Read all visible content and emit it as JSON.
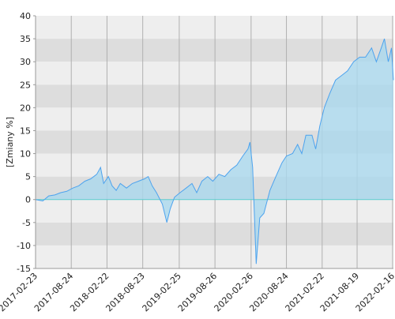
{
  "chart_data": {
    "type": "area",
    "y_label": "[Zmiany %]",
    "x": [
      "2017-02-23",
      "2017-04-01",
      "2017-05-01",
      "2017-06-01",
      "2017-07-01",
      "2017-08-01",
      "2017-09-01",
      "2017-10-01",
      "2017-11-01",
      "2017-12-01",
      "2018-01-01",
      "2018-01-20",
      "2018-02-05",
      "2018-03-01",
      "2018-03-20",
      "2018-04-10",
      "2018-05-01",
      "2018-06-01",
      "2018-07-01",
      "2018-08-01",
      "2018-09-01",
      "2018-09-20",
      "2018-10-10",
      "2018-11-01",
      "2018-12-01",
      "2018-12-24",
      "2019-01-10",
      "2019-02-01",
      "2019-03-01",
      "2019-04-01",
      "2019-05-01",
      "2019-05-25",
      "2019-06-20",
      "2019-07-20",
      "2019-08-15",
      "2019-09-15",
      "2019-10-15",
      "2019-11-15",
      "2019-12-15",
      "2020-01-15",
      "2020-02-10",
      "2020-02-20",
      "2020-03-05",
      "2020-03-23",
      "2020-04-10",
      "2020-05-01",
      "2020-06-01",
      "2020-07-01",
      "2020-08-01",
      "2020-08-24",
      "2020-09-24",
      "2020-10-20",
      "2020-11-10",
      "2020-12-01",
      "2021-01-01",
      "2021-01-20",
      "2021-02-10",
      "2021-03-05",
      "2021-04-01",
      "2021-05-01",
      "2021-06-01",
      "2021-07-01",
      "2021-08-01",
      "2021-09-01",
      "2021-10-01",
      "2021-11-01",
      "2021-11-25",
      "2021-12-20",
      "2022-01-05",
      "2022-01-25",
      "2022-02-10",
      "2022-02-20"
    ],
    "values": [
      0,
      -0.3,
      0.8,
      1.0,
      1.5,
      1.8,
      2.5,
      3.0,
      4.0,
      4.5,
      5.5,
      7.0,
      3.5,
      5.0,
      3.0,
      2.0,
      3.5,
      2.5,
      3.5,
      4.0,
      4.5,
      5.0,
      3.0,
      1.5,
      -1.0,
      -5.0,
      -2.0,
      0.5,
      1.5,
      2.5,
      3.5,
      1.5,
      4.0,
      5.0,
      4.0,
      5.5,
      5.0,
      6.5,
      7.5,
      9.5,
      11.0,
      12.5,
      7,
      -14,
      -4,
      -3,
      2,
      5,
      8,
      9.5,
      10,
      12,
      10,
      14,
      14,
      11,
      16,
      20,
      23,
      26,
      27,
      28,
      30,
      31,
      31,
      33,
      30,
      33,
      35,
      30,
      33,
      26
    ],
    "color": "#4da3ee",
    "fill_color": "#aad8ee",
    "zero_line_color": "#5ccccc",
    "band_colors": [
      "#eeeeee",
      "#dddddd"
    ],
    "xlim": [
      "2017-02-23",
      "2022-02-20"
    ],
    "xticks": [
      "2017-02-23",
      "2017-08-24",
      "2018-02-22",
      "2018-08-23",
      "2019-02-25",
      "2019-08-26",
      "2020-02-26",
      "2020-08-24",
      "2021-02-22",
      "2021-08-19",
      "2022-02-16"
    ],
    "ylim": [
      -15,
      40
    ],
    "yticks": [
      -15,
      -10,
      -5,
      0,
      5,
      10,
      15,
      20,
      25,
      30,
      35,
      40
    ],
    "grid": true
  }
}
